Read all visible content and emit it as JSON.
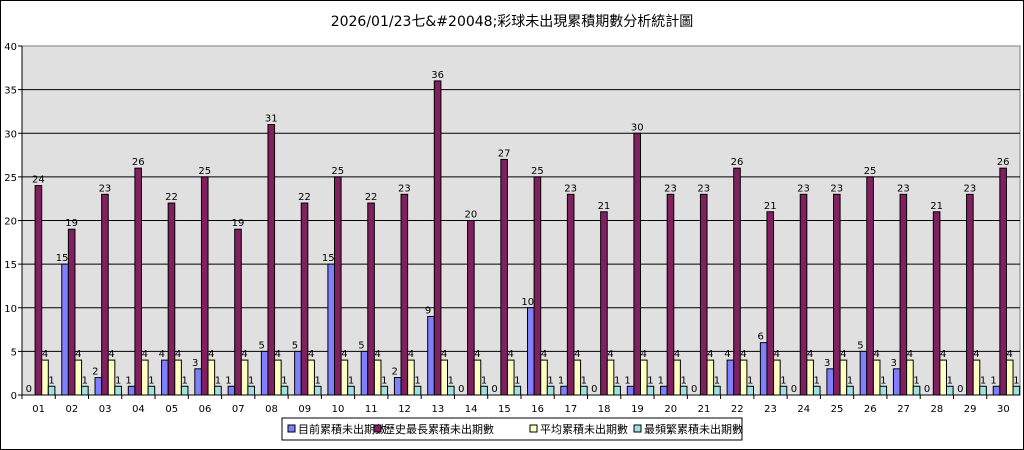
{
  "chart_data": {
    "type": "bar",
    "title": "2026/01/23七&#20048;彩球未出現累積期數分析統計圖",
    "xlabel": "",
    "ylabel": "",
    "ylim": [
      0,
      40
    ],
    "yticks": [
      "0",
      "5",
      "10",
      "15",
      "20",
      "25",
      "30",
      "35",
      "40"
    ],
    "grid": true,
    "legend_position": "bottom",
    "categories": [
      "01",
      "02",
      "03",
      "04",
      "05",
      "06",
      "07",
      "08",
      "09",
      "10",
      "11",
      "12",
      "13",
      "14",
      "15",
      "16",
      "17",
      "18",
      "19",
      "20",
      "21",
      "22",
      "23",
      "24",
      "25",
      "26",
      "27",
      "28",
      "29",
      "30"
    ],
    "series": [
      {
        "name": "目前累積未出期數",
        "color": "#8080FF",
        "values": [
          0,
          15,
          2,
          1,
          4,
          3,
          1,
          5,
          5,
          15,
          5,
          2,
          9,
          0,
          0,
          10,
          1,
          0,
          1,
          1,
          0,
          4,
          6,
          0,
          3,
          5,
          3,
          0,
          0,
          1
        ]
      },
      {
        "name": "歷史最長累積未出期數",
        "color": "#802060",
        "values": [
          24,
          19,
          23,
          26,
          22,
          25,
          19,
          31,
          22,
          25,
          22,
          23,
          36,
          20,
          27,
          25,
          23,
          21,
          30,
          23,
          23,
          26,
          21,
          23,
          23,
          25,
          23,
          21,
          23,
          26
        ]
      },
      {
        "name": "平均累積未出期數",
        "color": "#FFFFC0",
        "values": [
          4,
          4,
          4,
          4,
          4,
          4,
          4,
          4,
          4,
          4,
          4,
          4,
          4,
          4,
          4,
          4,
          4,
          4,
          4,
          4,
          4,
          4,
          4,
          4,
          4,
          4,
          4,
          4,
          4,
          4
        ]
      },
      {
        "name": "最頻繁累積未出期數",
        "color": "#A0E0E0",
        "values": [
          1,
          1,
          1,
          1,
          1,
          1,
          1,
          1,
          1,
          1,
          1,
          1,
          1,
          1,
          1,
          1,
          1,
          1,
          1,
          1,
          1,
          1,
          1,
          1,
          1,
          1,
          1,
          1,
          1,
          1
        ]
      }
    ]
  }
}
